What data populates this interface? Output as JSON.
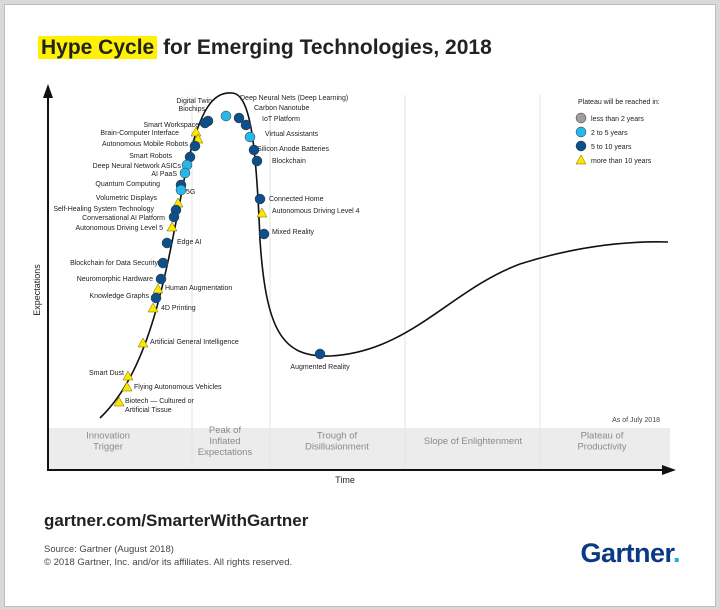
{
  "title": {
    "highlight": "Hype Cycle",
    "rest": " for Emerging Technologies, 2018"
  },
  "footer": {
    "url": "gartner.com/SmarterWithGartner",
    "source": "Source: Gartner (August 2018)",
    "copyright": "© 2018 Gartner, Inc. and/or its affiliates. All rights reserved.",
    "logo": "Gartner",
    "logo_dot": "."
  },
  "chart_data": {
    "type": "scatter",
    "xlabel": "Time",
    "ylabel": "Expectations",
    "as_of": "As of July 2018",
    "phases": [
      {
        "lines": [
          "Innovation",
          "Trigger"
        ]
      },
      {
        "lines": [
          "Peak of",
          "Inflated",
          "Expectations"
        ]
      },
      {
        "lines": [
          "Trough of",
          "Disillusionment"
        ]
      },
      {
        "lines": [
          "Slope of Enlightenment"
        ]
      },
      {
        "lines": [
          "Plateau of",
          "Productivity"
        ]
      }
    ],
    "legend": {
      "title": "Plateau will be reached in:",
      "items": [
        {
          "label": "less than 2 years",
          "marker": "circle",
          "color": "#9e9e9e"
        },
        {
          "label": "2 to 5 years",
          "marker": "circle",
          "color": "#29b6e8"
        },
        {
          "label": "5 to 10 years",
          "marker": "circle",
          "color": "#0d4f8b"
        },
        {
          "label": "more than 10 years",
          "marker": "triangle",
          "color": "#ffe600"
        }
      ]
    },
    "technologies": [
      {
        "name": "Digital Twin",
        "marker": "5 to 10 years"
      },
      {
        "name": "Deep Neural Nets (Deep Learning)",
        "marker": "2 to 5 years"
      },
      {
        "name": "Biochips",
        "marker": "more than 10 years"
      },
      {
        "name": "Carbon Nanotube",
        "marker": "5 to 10 years"
      },
      {
        "name": "IoT Platform",
        "marker": "5 to 10 years"
      },
      {
        "name": "Smart Workspace",
        "marker": "5 to 10 years"
      },
      {
        "name": "Virtual Assistants",
        "marker": "2 to 5 years"
      },
      {
        "name": "Brain-Computer Interface",
        "marker": "more than 10 years"
      },
      {
        "name": "Autonomous Mobile Robots",
        "marker": "5 to 10 years"
      },
      {
        "name": "Silicon Anode Batteries",
        "marker": "5 to 10 years"
      },
      {
        "name": "Blockchain",
        "marker": "5 to 10 years"
      },
      {
        "name": "Smart Robots",
        "marker": "5 to 10 years"
      },
      {
        "name": "Deep Neural Network ASICs",
        "marker": "2 to 5 years"
      },
      {
        "name": "AI PaaS",
        "marker": "2 to 5 years"
      },
      {
        "name": "Quantum Computing",
        "marker": "5 to 10 years"
      },
      {
        "name": "5G",
        "marker": "2 to 5 years"
      },
      {
        "name": "Connected Home",
        "marker": "5 to 10 years"
      },
      {
        "name": "Volumetric Displays",
        "marker": "more than 10 years"
      },
      {
        "name": "Autonomous Driving Level 4",
        "marker": "more than 10 years"
      },
      {
        "name": "Self-Healing System Technology",
        "marker": "5 to 10 years"
      },
      {
        "name": "Conversational AI Platform",
        "marker": "5 to 10 years"
      },
      {
        "name": "Autonomous Driving Level 5",
        "marker": "more than 10 years"
      },
      {
        "name": "Mixed Reality",
        "marker": "5 to 10 years"
      },
      {
        "name": "Edge AI",
        "marker": "5 to 10 years"
      },
      {
        "name": "Blockchain for Data Security",
        "marker": "5 to 10 years"
      },
      {
        "name": "Neuromorphic Hardware",
        "marker": "5 to 10 years"
      },
      {
        "name": "Human Augmentation",
        "marker": "more than 10 years"
      },
      {
        "name": "Knowledge Graphs",
        "marker": "5 to 10 years"
      },
      {
        "name": "4D Printing",
        "marker": "more than 10 years"
      },
      {
        "name": "Artificial General Intelligence",
        "marker": "more than 10 years"
      },
      {
        "name": "Augmented Reality",
        "marker": "5 to 10 years"
      },
      {
        "name": "Smart Dust",
        "marker": "more than 10 years"
      },
      {
        "name": "Flying Autonomous Vehicles",
        "marker": "more than 10 years"
      },
      {
        "name": "Biotech — Cultured or Artificial Tissue",
        "marker": "more than 10 years"
      }
    ]
  }
}
